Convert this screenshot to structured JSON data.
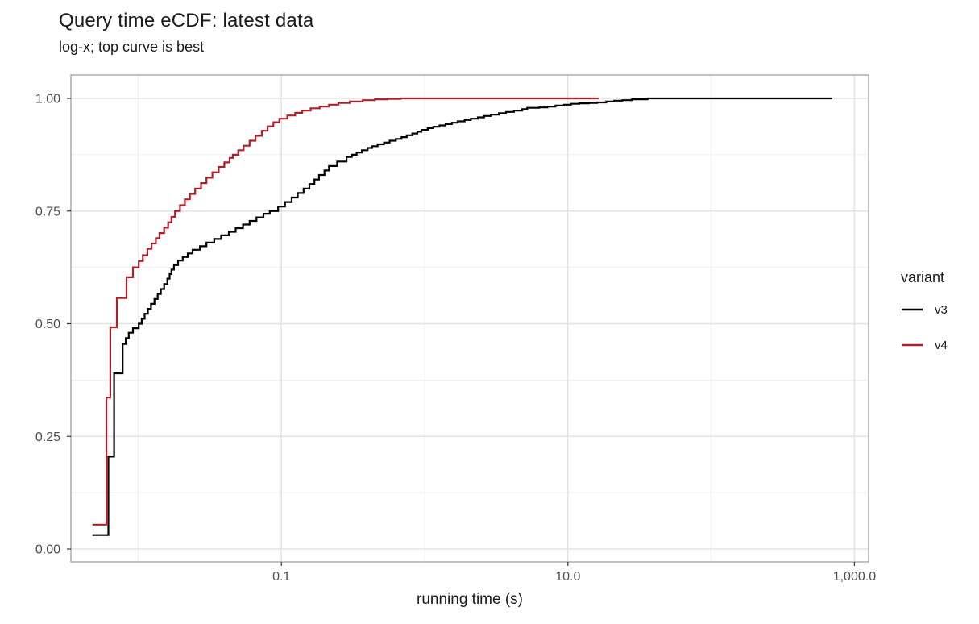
{
  "title": "Query time eCDF: latest data",
  "subtitle": "log-x; top curve is best",
  "legend": {
    "title": "variant",
    "entries": [
      {
        "label": "v3",
        "color": "#000000"
      },
      {
        "label": "v4",
        "color": "#b0202c"
      }
    ]
  },
  "colors": {
    "background": "#ffffff",
    "grid_major": "#e3e3e3",
    "grid_minor": "#efefef",
    "panel_border": "#999999",
    "tick_mark": "#333333",
    "tick_label": "#4d4d4d",
    "series_v3": "#000000",
    "series_v4": "#b0202c"
  },
  "chart_data": {
    "type": "line",
    "subtype": "ecdf-step",
    "title": "Query time eCDF: latest data",
    "subtitle": "log-x; top curve is best",
    "xlabel": "running time (s)",
    "ylabel": "",
    "x_scale": "log10",
    "xlim": [
      0.0035,
      1300
    ],
    "ylim": [
      0,
      1
    ],
    "x_ticks": [
      {
        "value": 0.1,
        "label": "0.1"
      },
      {
        "value": 10,
        "label": "10.0"
      },
      {
        "value": 1000,
        "label": "1,000.0"
      }
    ],
    "x_minor_gridlines": [
      0.01,
      1,
      100
    ],
    "y_ticks": [
      {
        "value": 0.0,
        "label": "0.00"
      },
      {
        "value": 0.25,
        "label": "0.25"
      },
      {
        "value": 0.5,
        "label": "0.50"
      },
      {
        "value": 0.75,
        "label": "0.75"
      },
      {
        "value": 1.0,
        "label": "1.00"
      }
    ],
    "y_minor_gridlines": [
      0.125,
      0.375,
      0.625,
      0.875
    ],
    "legend_position": "right",
    "grid": true,
    "series": [
      {
        "name": "v3",
        "color": "#000000",
        "points": [
          [
            0.0048,
            0.031
          ],
          [
            0.0062,
            0.205
          ],
          [
            0.0068,
            0.39
          ],
          [
            0.0078,
            0.455
          ],
          [
            0.0082,
            0.468
          ],
          [
            0.0086,
            0.48
          ],
          [
            0.0092,
            0.49
          ],
          [
            0.0101,
            0.5
          ],
          [
            0.0106,
            0.511
          ],
          [
            0.0111,
            0.522
          ],
          [
            0.0117,
            0.533
          ],
          [
            0.0123,
            0.544
          ],
          [
            0.013,
            0.555
          ],
          [
            0.0137,
            0.566
          ],
          [
            0.0144,
            0.577
          ],
          [
            0.0152,
            0.588
          ],
          [
            0.016,
            0.6
          ],
          [
            0.0166,
            0.61
          ],
          [
            0.0171,
            0.62
          ],
          [
            0.0178,
            0.63
          ],
          [
            0.019,
            0.64
          ],
          [
            0.0205,
            0.648
          ],
          [
            0.0222,
            0.656
          ],
          [
            0.024,
            0.664
          ],
          [
            0.027,
            0.672
          ],
          [
            0.03,
            0.68
          ],
          [
            0.034,
            0.688
          ],
          [
            0.038,
            0.696
          ],
          [
            0.043,
            0.704
          ],
          [
            0.048,
            0.712
          ],
          [
            0.054,
            0.72
          ],
          [
            0.06,
            0.728
          ],
          [
            0.067,
            0.736
          ],
          [
            0.075,
            0.744
          ],
          [
            0.083,
            0.75
          ],
          [
            0.095,
            0.76
          ],
          [
            0.106,
            0.77
          ],
          [
            0.118,
            0.78
          ],
          [
            0.13,
            0.79
          ],
          [
            0.143,
            0.8
          ],
          [
            0.157,
            0.81
          ],
          [
            0.17,
            0.82
          ],
          [
            0.183,
            0.83
          ],
          [
            0.2,
            0.84
          ],
          [
            0.215,
            0.85
          ],
          [
            0.245,
            0.86
          ],
          [
            0.285,
            0.87
          ],
          [
            0.31,
            0.875
          ],
          [
            0.335,
            0.88
          ],
          [
            0.365,
            0.885
          ],
          [
            0.4,
            0.89
          ],
          [
            0.43,
            0.894
          ],
          [
            0.47,
            0.898
          ],
          [
            0.52,
            0.902
          ],
          [
            0.57,
            0.906
          ],
          [
            0.63,
            0.91
          ],
          [
            0.69,
            0.914
          ],
          [
            0.75,
            0.918
          ],
          [
            0.82,
            0.922
          ],
          [
            0.89,
            0.926
          ],
          [
            0.95,
            0.93
          ],
          [
            1.05,
            0.934
          ],
          [
            1.15,
            0.937
          ],
          [
            1.27,
            0.94
          ],
          [
            1.4,
            0.943
          ],
          [
            1.55,
            0.946
          ],
          [
            1.7,
            0.949
          ],
          [
            1.9,
            0.952
          ],
          [
            2.1,
            0.955
          ],
          [
            2.35,
            0.958
          ],
          [
            2.6,
            0.961
          ],
          [
            2.9,
            0.964
          ],
          [
            3.3,
            0.967
          ],
          [
            3.7,
            0.97
          ],
          [
            4.2,
            0.973
          ],
          [
            4.8,
            0.976
          ],
          [
            5.2,
            0.979
          ],
          [
            6.3,
            0.98
          ],
          [
            7.2,
            0.982
          ],
          [
            8.2,
            0.984
          ],
          [
            9.4,
            0.986
          ],
          [
            10.5,
            0.988
          ],
          [
            12,
            0.989
          ],
          [
            14,
            0.99
          ],
          [
            16,
            0.991
          ],
          [
            18.5,
            0.993
          ],
          [
            21,
            0.995
          ],
          [
            24,
            0.996
          ],
          [
            28,
            0.998
          ],
          [
            36,
            1.0
          ],
          [
            700,
            1.0
          ]
        ]
      },
      {
        "name": "v4",
        "color": "#b0202c",
        "points": [
          [
            0.0048,
            0.054
          ],
          [
            0.006,
            0.336
          ],
          [
            0.0064,
            0.492
          ],
          [
            0.0071,
            0.557
          ],
          [
            0.0083,
            0.603
          ],
          [
            0.0092,
            0.625
          ],
          [
            0.0101,
            0.639
          ],
          [
            0.0108,
            0.652
          ],
          [
            0.0116,
            0.666
          ],
          [
            0.0124,
            0.678
          ],
          [
            0.0133,
            0.69
          ],
          [
            0.0141,
            0.701
          ],
          [
            0.0152,
            0.713
          ],
          [
            0.0162,
            0.725
          ],
          [
            0.0171,
            0.737
          ],
          [
            0.0181,
            0.75
          ],
          [
            0.0196,
            0.763
          ],
          [
            0.0212,
            0.776
          ],
          [
            0.023,
            0.788
          ],
          [
            0.025,
            0.8
          ],
          [
            0.0275,
            0.812
          ],
          [
            0.03,
            0.824
          ],
          [
            0.033,
            0.836
          ],
          [
            0.0365,
            0.848
          ],
          [
            0.04,
            0.858
          ],
          [
            0.0435,
            0.868
          ],
          [
            0.0458,
            0.875
          ],
          [
            0.05,
            0.885
          ],
          [
            0.0545,
            0.895
          ],
          [
            0.06,
            0.906
          ],
          [
            0.066,
            0.917
          ],
          [
            0.073,
            0.928
          ],
          [
            0.08,
            0.938
          ],
          [
            0.088,
            0.947
          ],
          [
            0.097,
            0.955
          ],
          [
            0.11,
            0.962
          ],
          [
            0.125,
            0.968
          ],
          [
            0.14,
            0.973
          ],
          [
            0.16,
            0.978
          ],
          [
            0.185,
            0.982
          ],
          [
            0.215,
            0.986
          ],
          [
            0.25,
            0.99
          ],
          [
            0.3,
            0.993
          ],
          [
            0.37,
            0.996
          ],
          [
            0.45,
            0.998
          ],
          [
            0.55,
            0.999
          ],
          [
            0.68,
            1.0
          ],
          [
            16.5,
            1.0
          ]
        ]
      }
    ]
  }
}
